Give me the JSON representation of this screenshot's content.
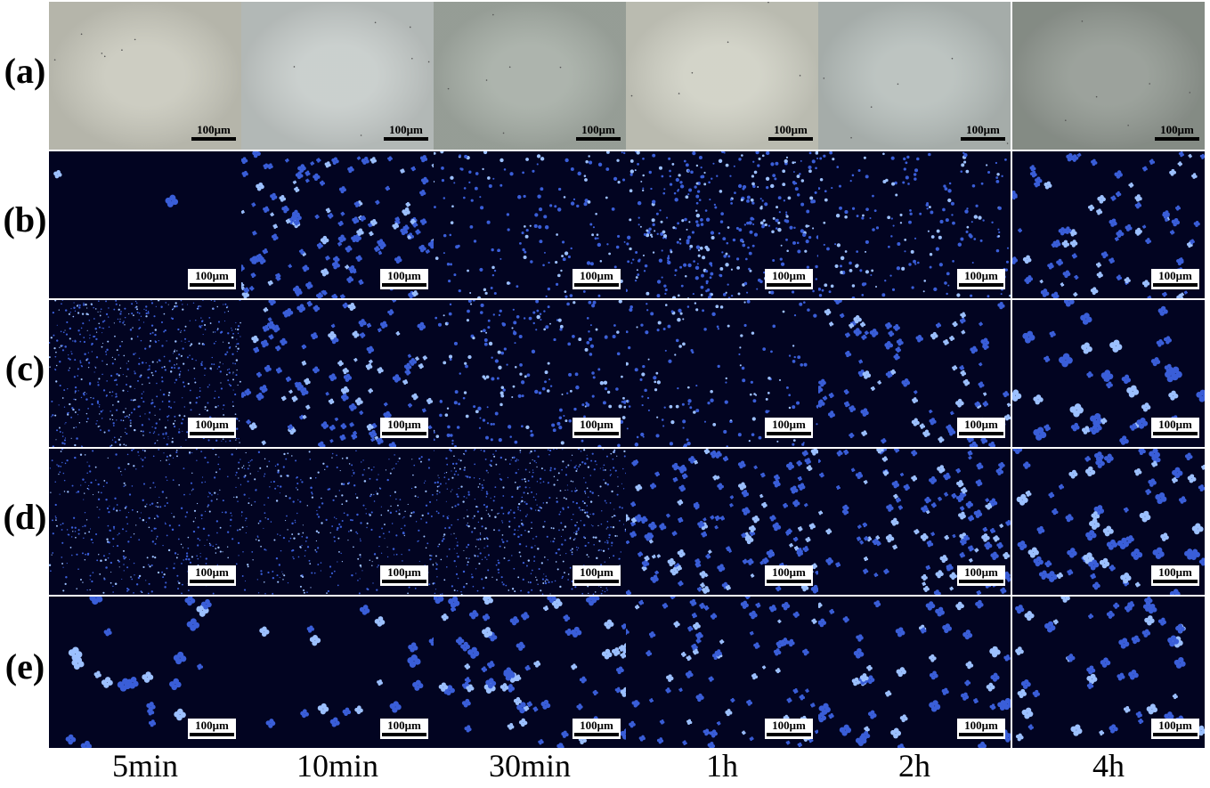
{
  "rows": [
    {
      "label": "(a)",
      "kind": "brightfield",
      "colors": [
        "#c9c9bd",
        "#c6ccca",
        "#a6aea6",
        "#cfd0c4",
        "#b7bfbc",
        "#939a93"
      ]
    },
    {
      "label": "(b)",
      "kind": "fluorescence",
      "density": [
        2,
        140,
        170,
        380,
        200,
        90
      ]
    },
    {
      "label": "(c)",
      "kind": "fluorescence",
      "density": [
        700,
        110,
        220,
        160,
        90,
        40
      ]
    },
    {
      "label": "(d)",
      "kind": "fluorescence",
      "density": [
        450,
        420,
        650,
        140,
        120,
        70
      ]
    },
    {
      "label": "(e)",
      "kind": "fluorescence",
      "density": [
        22,
        18,
        75,
        85,
        55,
        50
      ]
    }
  ],
  "scale_bar_label": "100μm",
  "columns": [
    "5min",
    "10min",
    "30min",
    "1h",
    "2h",
    "4h"
  ],
  "colors": {
    "fluor_bg": "#020421",
    "particle": "#3a5ed8",
    "particle_bright": "#9cc0ff"
  }
}
